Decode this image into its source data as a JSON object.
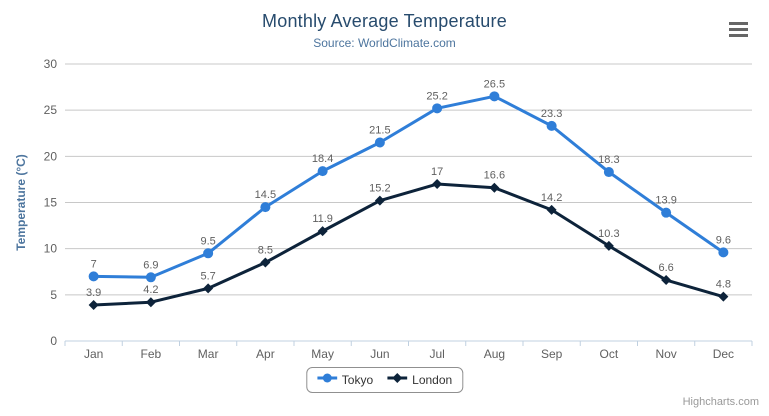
{
  "chart_data": {
    "type": "line",
    "title": "Monthly Average Temperature",
    "subtitle": "Source: WorldClimate.com",
    "ylabel": "Temperature (°C)",
    "ylim": [
      0,
      30
    ],
    "ytick_step": 5,
    "grid": true,
    "legend_position": "bottom",
    "categories": [
      "Jan",
      "Feb",
      "Mar",
      "Apr",
      "May",
      "Jun",
      "Jul",
      "Aug",
      "Sep",
      "Oct",
      "Nov",
      "Dec"
    ],
    "series": [
      {
        "name": "Tokyo",
        "color": "#2f7ed8",
        "marker": "circle",
        "values": [
          7,
          6.9,
          9.5,
          14.5,
          18.4,
          21.5,
          25.2,
          26.5,
          23.3,
          18.3,
          13.9,
          9.6
        ]
      },
      {
        "name": "London",
        "color": "#0d233a",
        "marker": "diamond",
        "values": [
          3.9,
          4.2,
          5.7,
          8.5,
          11.9,
          15.2,
          17,
          16.6,
          14.2,
          10.3,
          6.6,
          4.8
        ]
      }
    ]
  },
  "credits": "Highcharts.com",
  "colors": {
    "title": "#274b6d",
    "subtitle": "#4d759e",
    "axis_title": "#4d759e",
    "axis_labels": "#606060",
    "data_labels": "#606060",
    "gridline": "#c8c8c8",
    "axis_line": "#c0d0e0",
    "legend_border": "#909090",
    "credits": "#999999",
    "menu_icon": "#666666"
  }
}
